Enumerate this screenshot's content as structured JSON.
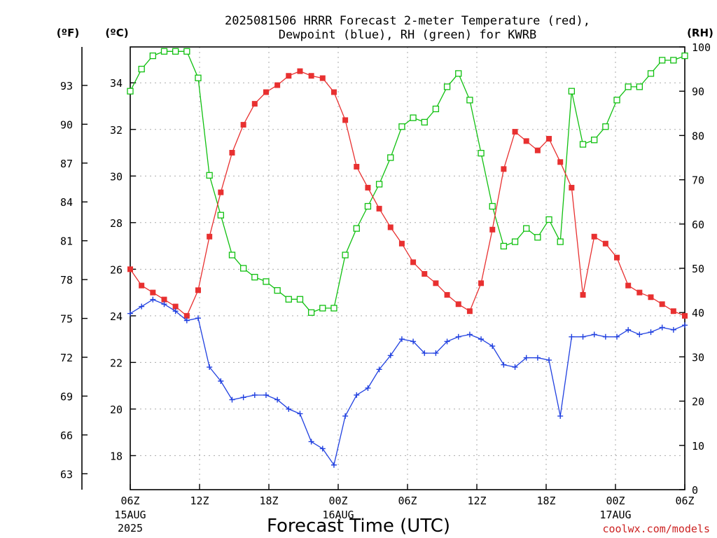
{
  "chart_data": {
    "type": "line",
    "title_line1": "2025081506 HRRR Forecast 2-meter Temperature (red),",
    "title_line2": "Dewpoint (blue), RH (green) for KWRB",
    "xlabel": "Forecast Time (UTC)",
    "credit": "coolwx.com/models",
    "unit_f": "(ºF)",
    "unit_c": "(ºC)",
    "unit_rh": "(RH)",
    "x_ticks": [
      {
        "hour": 0,
        "label": "06Z",
        "sub1": "15AUG",
        "sub2": "2025"
      },
      {
        "hour": 6,
        "label": "12Z"
      },
      {
        "hour": 12,
        "label": "18Z"
      },
      {
        "hour": 18,
        "label": "00Z",
        "sub1": "16AUG"
      },
      {
        "hour": 24,
        "label": "06Z"
      },
      {
        "hour": 30,
        "label": "12Z"
      },
      {
        "hour": 36,
        "label": "18Z"
      },
      {
        "hour": 42,
        "label": "00Z",
        "sub1": "17AUG"
      },
      {
        "hour": 48,
        "label": "06Z"
      }
    ],
    "xlim": [
      0,
      48
    ],
    "ylim_c": [
      16.54,
      35.54
    ],
    "ylim_rh": [
      0,
      100
    ],
    "c_ticks": [
      "18",
      "20",
      "22",
      "24",
      "26",
      "28",
      "30",
      "32",
      "34"
    ],
    "f_ticks": [
      "63",
      "66",
      "69",
      "72",
      "75",
      "78",
      "81",
      "84",
      "87",
      "90",
      "93"
    ],
    "rh_ticks": [
      "0",
      "10",
      "20",
      "30",
      "40",
      "50",
      "60",
      "70",
      "80",
      "90",
      "100"
    ],
    "grid": true,
    "colors": {
      "temperature": "#e83030",
      "dewpoint": "#2040e0",
      "rh": "#10c010"
    },
    "temperature_c": [
      26.0,
      25.3,
      25.0,
      24.7,
      24.4,
      24.0,
      25.1,
      27.4,
      29.3,
      31.0,
      32.2,
      33.1,
      33.6,
      33.9,
      34.3,
      34.5,
      34.3,
      34.2,
      33.6,
      32.4,
      30.4,
      29.5,
      28.6,
      27.8,
      27.1,
      26.3,
      25.8,
      25.4,
      24.9,
      24.5,
      24.2,
      25.4,
      27.7,
      30.3,
      31.9,
      31.5,
      31.1,
      31.6,
      30.6,
      29.5,
      24.9,
      27.4,
      27.1,
      26.5,
      25.3,
      25.0,
      24.8,
      24.5,
      24.2,
      24.0
    ],
    "dewpoint_c": [
      24.1,
      24.4,
      24.7,
      24.5,
      24.2,
      23.8,
      23.9,
      21.8,
      21.2,
      20.4,
      20.5,
      20.6,
      20.6,
      20.4,
      20.0,
      19.8,
      18.6,
      18.3,
      17.6,
      19.7,
      20.6,
      20.9,
      21.7,
      22.3,
      23.0,
      22.9,
      22.4,
      22.4,
      22.9,
      23.1,
      23.2,
      23.0,
      22.7,
      21.9,
      21.8,
      22.2,
      22.2,
      22.1,
      19.7,
      23.1,
      23.1,
      23.2,
      23.1,
      23.1,
      23.4,
      23.2,
      23.3,
      23.5,
      23.4,
      23.6
    ],
    "rh_pct": [
      90,
      95,
      98,
      99,
      99,
      99,
      93,
      71,
      62,
      53,
      50,
      48,
      47,
      45,
      43,
      43,
      40,
      41,
      41,
      53,
      59,
      64,
      69,
      75,
      82,
      84,
      83,
      86,
      91,
      94,
      88,
      76,
      64,
      55,
      56,
      59,
      57,
      61,
      56,
      90,
      78,
      79,
      82,
      88,
      91,
      91,
      94,
      97,
      97,
      98
    ]
  }
}
